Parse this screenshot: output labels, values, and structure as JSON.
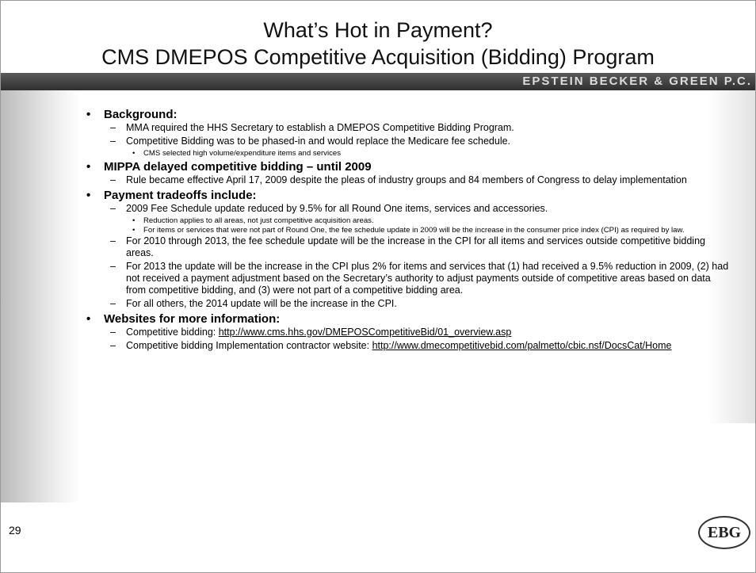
{
  "title": [
    "What’s Hot in Payment?",
    "CMS DMEPOS Competitive Acquisition (Bidding) Program"
  ],
  "firm": "EPSTEIN BECKER & GREEN P.C.",
  "bullets": [
    {
      "text": "Background:",
      "items": [
        {
          "text": "MMA required the HHS Secretary to establish a DMEPOS Competitive Bidding Program."
        },
        {
          "text": "Competitive Bidding was to be phased-in and would replace the Medicare fee schedule.",
          "items": [
            {
              "text": "CMS selected high volume/expenditure items and services"
            }
          ]
        }
      ]
    },
    {
      "text": "MIPPA delayed competitive bidding – until 2009",
      "items": [
        {
          "text": "Rule became effective April 17, 2009 despite the pleas of industry groups and 84 members of Congress to delay implementation"
        }
      ]
    },
    {
      "text": "Payment tradeoffs include:",
      "items": [
        {
          "text": "2009 Fee Schedule update reduced by 9.5% for all Round One items, services and accessories.",
          "items": [
            {
              "text": "Reduction applies to all areas, not just competitive acquisition areas."
            },
            {
              "text": "For items or services that were not part of Round One, the fee schedule update in 2009 will be the increase in the consumer price index (CPI) as required by law."
            }
          ]
        },
        {
          "text": "For 2010 through 2013, the fee schedule update will be the increase in the CPI for all items and services outside competitive bidding areas."
        },
        {
          "text": "For 2013 the update will be the increase in the CPI plus 2% for items and services that (1) had received a 9.5% reduction in 2009, (2) had not received a payment adjustment based on the Secretary’s authority to adjust payments outside of competitive areas based on data from competitive bidding, and (3) were not part of a competitive bidding area."
        },
        {
          "text": "For all others, the 2014 update will be the increase in the CPI."
        }
      ]
    },
    {
      "text": "Websites for more information:",
      "items": [
        {
          "text": "Competitive bidding: ",
          "link": "http://www.cms.hhs.gov/DMEPOSCompetitiveBid/01_overview.asp"
        },
        {
          "text": "Competitive bidding Implementation contractor website: ",
          "link": "http://www.dmecompetitivebid.com/palmetto/cbic.nsf/DocsCat/Home"
        }
      ]
    }
  ],
  "page_number": "29",
  "logo": "EBG"
}
